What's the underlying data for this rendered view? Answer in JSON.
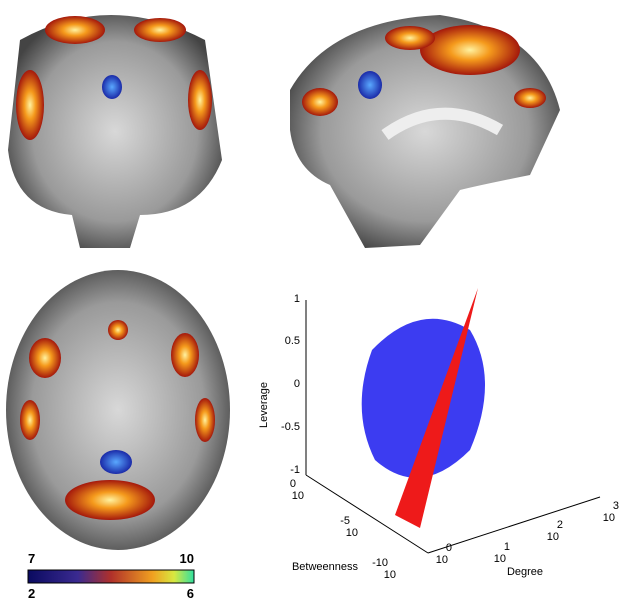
{
  "colorbar": {
    "top_left": "7",
    "top_right": "10",
    "bottom_left": "2",
    "bottom_right": "6"
  },
  "plot": {
    "z_label": "Leverage",
    "z_ticks": [
      "1",
      "0.5",
      "0",
      "-0.5",
      "-1"
    ],
    "x_label": "Betweenness",
    "x_ticks": [
      {
        "base": "10",
        "exponent": "0"
      },
      {
        "base": "10",
        "exponent": "-5"
      },
      {
        "base": "10",
        "exponent": "-10"
      }
    ],
    "y_label": "Degree",
    "y_ticks": [
      {
        "base": "10",
        "exponent": "0"
      },
      {
        "base": "10",
        "exponent": "1"
      },
      {
        "base": "10",
        "exponent": "2"
      },
      {
        "base": "10",
        "exponent": "3"
      }
    ]
  }
}
